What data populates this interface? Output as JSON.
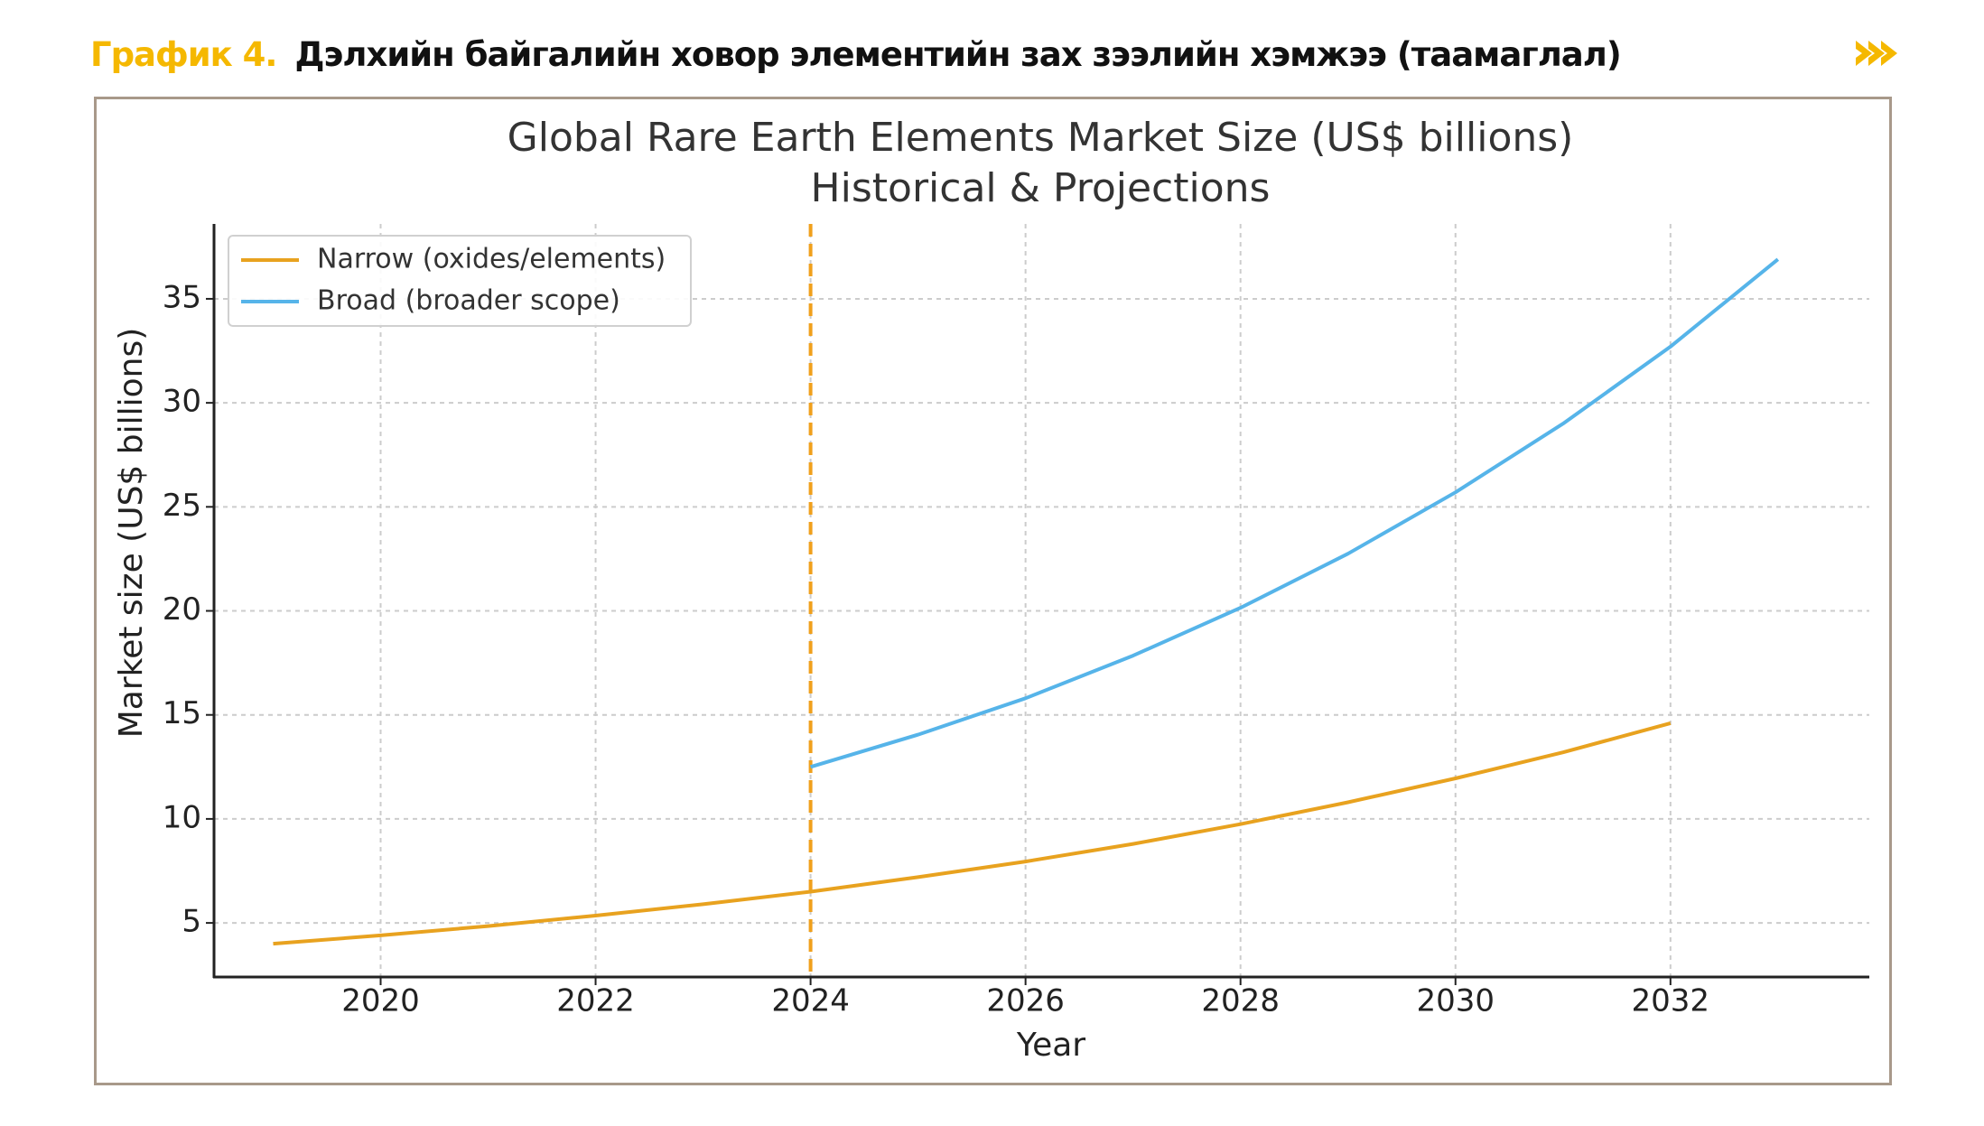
{
  "header": {
    "figure_label": "График 4.",
    "figure_title": "Дэлхийн байгалийн ховор элементийн зах зээлийн хэмжээ (таамаглал)",
    "arrow_icon": "double-chevron-right-icon",
    "accent_color": "#f5b800"
  },
  "chart_data": {
    "type": "line",
    "title": "Global Rare Earth Elements Market Size (US$ billions)",
    "subtitle": "Historical & Projections",
    "xlabel": "Year",
    "ylabel": "Market size (US$ billions)",
    "xlim": [
      2018.45,
      2033.85
    ],
    "ylim": [
      2.4,
      38.6
    ],
    "x_ticks": [
      2020,
      2022,
      2024,
      2026,
      2028,
      2030,
      2032
    ],
    "y_ticks": [
      5,
      10,
      15,
      20,
      25,
      30,
      35
    ],
    "grid": true,
    "legend_position": "top-left",
    "vertical_line": {
      "x": 2024,
      "style": "dashed",
      "color": "#f0a01c"
    },
    "series": [
      {
        "name": "Narrow (oxides/elements)",
        "color": "#e8a21f",
        "x": [
          2019,
          2020,
          2021,
          2022,
          2023,
          2024,
          2025,
          2026,
          2027,
          2028,
          2029,
          2030,
          2031,
          2032
        ],
        "values": [
          4.0,
          4.4,
          4.85,
          5.35,
          5.9,
          6.5,
          7.2,
          7.95,
          8.8,
          9.75,
          10.8,
          11.95,
          13.2,
          14.6
        ]
      },
      {
        "name": "Broad (broader scope)",
        "color": "#56b4e9",
        "x": [
          2024,
          2025,
          2026,
          2027,
          2028,
          2029,
          2030,
          2031,
          2032,
          2033
        ],
        "values": [
          12.5,
          14.05,
          15.8,
          17.85,
          20.15,
          22.75,
          25.7,
          29.0,
          32.7,
          36.9
        ]
      }
    ]
  }
}
